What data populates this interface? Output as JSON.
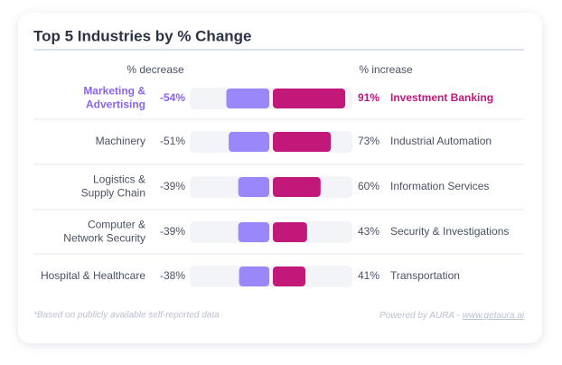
{
  "chart_data": {
    "type": "diverging-bar",
    "title": "Top 5 Industries by % Change",
    "xlim": [
      -100,
      100
    ],
    "highlight_index": 0,
    "track_color": "#f3f4f8",
    "series": [
      {
        "name": "% decrease",
        "color": "#9a87fa",
        "highlight_color": "#8a63f0",
        "categories": [
          "Marketing &\nAdvertising",
          "Machinery",
          "Logistics &\nSupply Chain",
          "Computer &\nNetwork Security",
          "Hospital & Healthcare"
        ],
        "values": [
          -54,
          -51,
          -39,
          -39,
          -38
        ],
        "value_labels": [
          "-54%",
          "-51%",
          "-39%",
          "-39%",
          "-38%"
        ]
      },
      {
        "name": "% increase",
        "color": "#c2187a",
        "highlight_color": "#c2187a",
        "categories": [
          "Investment Banking",
          "Industrial Automation",
          "Information Services",
          "Security & Investigations",
          "Transportation"
        ],
        "values": [
          91,
          73,
          60,
          43,
          41
        ],
        "value_labels": [
          "91%",
          "73%",
          "60%",
          "43%",
          "41%"
        ]
      }
    ]
  },
  "footer": {
    "note": "*Based on publicly available self-reported data",
    "credit": "Powered by AURA -",
    "link": "www.getaura.ai"
  }
}
